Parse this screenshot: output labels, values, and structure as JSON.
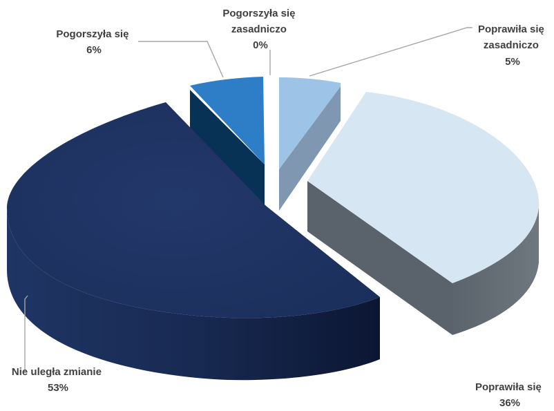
{
  "chart_data": {
    "type": "pie",
    "style": "3d-exploded",
    "slices": [
      {
        "label": "Poprawiła się zasadniczo",
        "value": 5,
        "percent": "5%",
        "color_top": "#9dc3e6",
        "color_side": "#7f97b0"
      },
      {
        "label": "Poprawiła się",
        "value": 36,
        "percent": "36%",
        "color_top": "#d6e6f2",
        "color_side": "#5a626b"
      },
      {
        "label": "Nie uległa zmianie",
        "value": 53,
        "percent": "53%",
        "color_top": "#1f3564",
        "color_side": "#1a2a55"
      },
      {
        "label": "Pogorszyła się",
        "value": 6,
        "percent": "6%",
        "color_top": "#2e6fb5",
        "color_side": "#0d3a66"
      },
      {
        "label": "Pogorszyła się zasadniczo",
        "value": 0,
        "percent": "0%",
        "color_top": "#1b4f8a",
        "color_side": "#0d3a66"
      }
    ],
    "labels": {
      "poprawila_zas": [
        "Poprawiła się",
        "zasadniczo",
        "5%"
      ],
      "poprawila": [
        "Poprawiła się",
        "36%"
      ],
      "nie_ulegla": [
        "Nie uległa zmianie",
        "53%"
      ],
      "pogorszyla": [
        "Pogorszyła się",
        "6%"
      ],
      "pogorszyla_zas": [
        "Pogorszyła się",
        "zasadniczo",
        "0%"
      ]
    }
  }
}
